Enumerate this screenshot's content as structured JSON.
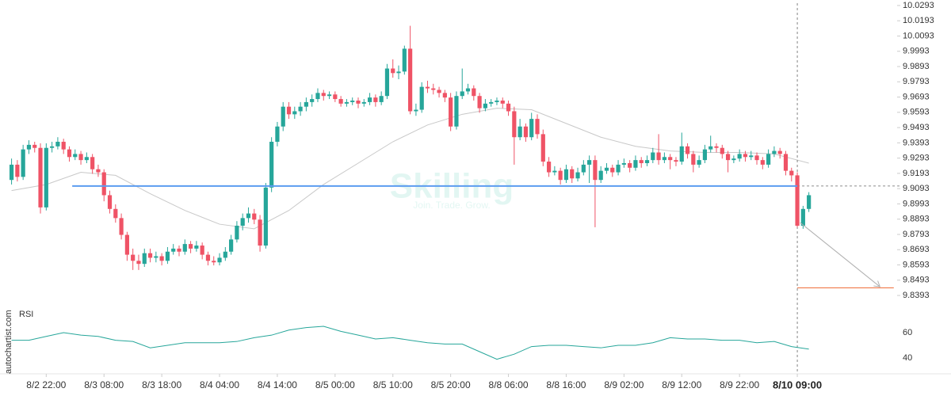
{
  "chart_data": {
    "type": "candlestick",
    "up_color": "#26a69a",
    "down_color": "#ef5366",
    "ylim": [
      9.8331,
      10.0329
    ],
    "yticks": [
      10.0293,
      10.0193,
      10.0093,
      9.9993,
      9.9893,
      9.9793,
      9.9693,
      9.9593,
      9.9493,
      9.9393,
      9.9293,
      9.9193,
      9.9093,
      9.8993,
      9.8893,
      9.8793,
      9.8693,
      9.8593,
      9.8493,
      9.8393
    ],
    "xlim": [
      -2,
      153
    ],
    "xticks": [
      {
        "value": 6,
        "label": "8/2 22:00"
      },
      {
        "value": 16,
        "label": "8/3 08:00"
      },
      {
        "value": 26,
        "label": "8/3 18:00"
      },
      {
        "value": 36,
        "label": "8/4 04:00"
      },
      {
        "value": 46,
        "label": "8/4 14:00"
      },
      {
        "value": 56,
        "label": "8/5 00:00"
      },
      {
        "value": 66,
        "label": "8/5 10:00"
      },
      {
        "value": 76,
        "label": "8/5 20:00"
      },
      {
        "value": 86,
        "label": "8/8 06:00"
      },
      {
        "value": 96,
        "label": "8/8 16:00"
      },
      {
        "value": 106,
        "label": "8/9 02:00"
      },
      {
        "value": 116,
        "label": "8/9 12:00"
      },
      {
        "value": 126,
        "label": "8/9 22:00"
      },
      {
        "value": 136,
        "label": "8/10 09:00"
      }
    ],
    "candles": [
      [
        9.915,
        9.929,
        9.912,
        9.925
      ],
      [
        9.925,
        9.928,
        9.914,
        9.917
      ],
      [
        9.917,
        9.938,
        9.915,
        9.935
      ],
      [
        9.935,
        9.941,
        9.932,
        9.938
      ],
      [
        9.938,
        9.94,
        9.933,
        9.936
      ],
      [
        9.936,
        9.939,
        9.893,
        9.897
      ],
      [
        9.897,
        9.939,
        9.895,
        9.936
      ],
      [
        9.936,
        9.94,
        9.933,
        9.937
      ],
      [
        9.937,
        9.943,
        9.935,
        9.94
      ],
      [
        9.94,
        9.942,
        9.932,
        9.935
      ],
      [
        9.935,
        9.937,
        9.927,
        9.93
      ],
      [
        9.93,
        9.935,
        9.928,
        9.932
      ],
      [
        9.932,
        9.934,
        9.925,
        9.928
      ],
      [
        9.928,
        9.933,
        9.926,
        9.93
      ],
      [
        9.93,
        9.932,
        9.919,
        9.922
      ],
      [
        9.922,
        9.925,
        9.917,
        9.92
      ],
      [
        9.92,
        9.922,
        9.901,
        9.905
      ],
      [
        9.905,
        9.908,
        9.893,
        9.896
      ],
      [
        9.896,
        9.899,
        9.887,
        9.89
      ],
      [
        9.89,
        9.893,
        9.876,
        9.879
      ],
      [
        9.879,
        9.881,
        9.862,
        9.866
      ],
      [
        9.866,
        9.87,
        9.856,
        9.862
      ],
      [
        9.862,
        9.866,
        9.856,
        9.86
      ],
      [
        9.86,
        9.87,
        9.858,
        9.867
      ],
      [
        9.867,
        9.87,
        9.861,
        9.864
      ],
      [
        9.864,
        9.868,
        9.861,
        9.865
      ],
      [
        9.865,
        9.867,
        9.859,
        9.862
      ],
      [
        9.862,
        9.871,
        9.86,
        9.868
      ],
      [
        9.868,
        9.873,
        9.866,
        9.87
      ],
      [
        9.87,
        9.872,
        9.865,
        9.868
      ],
      [
        9.868,
        9.876,
        9.866,
        9.873
      ],
      [
        9.873,
        9.875,
        9.867,
        9.87
      ],
      [
        9.87,
        9.875,
        9.868,
        9.872
      ],
      [
        9.872,
        9.874,
        9.863,
        9.866
      ],
      [
        9.866,
        9.868,
        9.859,
        9.862
      ],
      [
        9.862,
        9.865,
        9.859,
        9.861
      ],
      [
        9.861,
        9.867,
        9.859,
        9.864
      ],
      [
        9.864,
        9.871,
        9.862,
        9.868
      ],
      [
        9.868,
        9.879,
        9.866,
        9.876
      ],
      [
        9.876,
        9.888,
        9.874,
        9.885
      ],
      [
        9.885,
        9.893,
        9.882,
        9.89
      ],
      [
        9.89,
        9.897,
        9.887,
        9.893
      ],
      [
        9.893,
        9.896,
        9.886,
        9.889
      ],
      [
        9.889,
        9.892,
        9.868,
        9.872
      ],
      [
        9.872,
        9.913,
        9.87,
        9.91
      ],
      [
        9.91,
        9.943,
        9.907,
        9.94
      ],
      [
        9.94,
        9.953,
        9.937,
        9.95
      ],
      [
        9.95,
        9.966,
        9.947,
        9.963
      ],
      [
        9.963,
        9.966,
        9.955,
        9.958
      ],
      [
        9.958,
        9.963,
        9.955,
        9.96
      ],
      [
        9.96,
        9.966,
        9.957,
        9.963
      ],
      [
        9.963,
        9.969,
        9.96,
        9.966
      ],
      [
        9.966,
        9.971,
        9.963,
        9.968
      ],
      [
        9.968,
        9.975,
        9.966,
        9.972
      ],
      [
        9.972,
        9.974,
        9.967,
        9.97
      ],
      [
        9.97,
        9.973,
        9.968,
        9.971
      ],
      [
        9.971,
        9.973,
        9.966,
        9.968
      ],
      [
        9.968,
        9.97,
        9.963,
        9.965
      ],
      [
        9.965,
        9.968,
        9.963,
        9.966
      ],
      [
        9.966,
        9.969,
        9.964,
        9.967
      ],
      [
        9.967,
        9.969,
        9.962,
        9.965
      ],
      [
        9.965,
        9.968,
        9.963,
        9.966
      ],
      [
        9.966,
        9.972,
        9.964,
        9.969
      ],
      [
        9.969,
        9.971,
        9.963,
        9.966
      ],
      [
        9.966,
        9.973,
        9.964,
        9.97
      ],
      [
        9.97,
        9.991,
        9.968,
        9.988
      ],
      [
        9.988,
        9.994,
        9.982,
        9.985
      ],
      [
        9.985,
        9.99,
        9.981,
        9.986
      ],
      [
        9.986,
        10.003,
        9.984,
        10.001
      ],
      [
        10.001,
        10.016,
        9.958,
        9.96
      ],
      [
        9.96,
        9.965,
        9.957,
        9.961
      ],
      [
        9.961,
        9.979,
        9.959,
        9.976
      ],
      [
        9.976,
        9.98,
        9.972,
        9.975
      ],
      [
        9.975,
        9.978,
        9.971,
        9.974
      ],
      [
        9.974,
        9.976,
        9.969,
        9.972
      ],
      [
        9.972,
        9.974,
        9.966,
        9.969
      ],
      [
        9.969,
        9.972,
        9.947,
        9.95
      ],
      [
        9.95,
        9.973,
        9.948,
        9.97
      ],
      [
        9.97,
        9.988,
        9.968,
        9.973
      ],
      [
        9.973,
        9.978,
        9.971,
        9.975
      ],
      [
        9.975,
        9.977,
        9.967,
        9.97
      ],
      [
        9.97,
        9.972,
        9.959,
        9.962
      ],
      [
        9.962,
        9.968,
        9.96,
        9.965
      ],
      [
        9.965,
        9.968,
        9.963,
        9.966
      ],
      [
        9.966,
        9.969,
        9.964,
        9.967
      ],
      [
        9.967,
        9.969,
        9.962,
        9.965
      ],
      [
        9.965,
        9.967,
        9.957,
        9.96
      ],
      [
        9.96,
        9.963,
        9.925,
        9.943
      ],
      [
        9.943,
        9.955,
        9.941,
        9.95
      ],
      [
        9.95,
        9.952,
        9.94,
        9.943
      ],
      [
        9.943,
        9.959,
        9.941,
        9.955
      ],
      [
        9.955,
        9.958,
        9.942,
        9.945
      ],
      [
        9.945,
        9.948,
        9.924,
        9.927
      ],
      [
        9.927,
        9.93,
        9.917,
        9.92
      ],
      [
        9.92,
        9.924,
        9.918,
        9.921
      ],
      [
        9.921,
        9.923,
        9.912,
        9.915
      ],
      [
        9.915,
        9.925,
        9.913,
        9.922
      ],
      [
        9.922,
        9.924,
        9.913,
        9.916
      ],
      [
        9.916,
        9.923,
        9.914,
        9.92
      ],
      [
        9.92,
        9.928,
        9.918,
        9.925
      ],
      [
        9.925,
        9.931,
        9.913,
        9.928
      ],
      [
        9.928,
        9.931,
        9.884,
        9.915
      ],
      [
        9.915,
        9.924,
        9.913,
        9.921
      ],
      [
        9.921,
        9.926,
        9.919,
        9.923
      ],
      [
        9.923,
        9.925,
        9.917,
        9.92
      ],
      [
        9.92,
        9.928,
        9.918,
        9.925
      ],
      [
        9.925,
        9.929,
        9.923,
        9.926
      ],
      [
        9.926,
        9.928,
        9.92,
        9.923
      ],
      [
        9.923,
        9.931,
        9.921,
        9.928
      ],
      [
        9.928,
        9.93,
        9.923,
        9.926
      ],
      [
        9.926,
        9.931,
        9.924,
        9.928
      ],
      [
        9.928,
        9.936,
        9.926,
        9.933
      ],
      [
        9.933,
        9.945,
        9.925,
        9.928
      ],
      [
        9.928,
        9.933,
        9.926,
        9.93
      ],
      [
        9.93,
        9.932,
        9.922,
        9.928
      ],
      [
        9.928,
        9.93,
        9.924,
        9.927
      ],
      [
        9.927,
        9.946,
        9.925,
        9.937
      ],
      [
        9.937,
        9.939,
        9.929,
        9.932
      ],
      [
        9.932,
        9.934,
        9.92,
        9.925
      ],
      [
        9.925,
        9.931,
        9.923,
        9.928
      ],
      [
        9.928,
        9.938,
        9.926,
        9.935
      ],
      [
        9.935,
        9.944,
        9.933,
        9.937
      ],
      [
        9.937,
        9.939,
        9.933,
        9.936
      ],
      [
        9.936,
        9.938,
        9.929,
        9.932
      ],
      [
        9.932,
        9.934,
        9.92,
        9.928
      ],
      [
        9.928,
        9.931,
        9.926,
        9.929
      ],
      [
        9.929,
        9.935,
        9.927,
        9.932
      ],
      [
        9.932,
        9.934,
        9.927,
        9.93
      ],
      [
        9.93,
        9.934,
        9.928,
        9.931
      ],
      [
        9.931,
        9.933,
        9.925,
        9.928
      ],
      [
        9.928,
        9.93,
        9.922,
        9.925
      ],
      [
        9.925,
        9.935,
        9.923,
        9.932
      ],
      [
        9.932,
        9.937,
        9.93,
        9.934
      ],
      [
        9.934,
        9.936,
        9.929,
        9.932
      ],
      [
        9.932,
        9.934,
        9.918,
        9.921
      ],
      [
        9.921,
        9.923,
        9.914,
        9.918
      ],
      [
        9.918,
        9.92,
        9.884,
        9.885
      ],
      [
        9.885,
        9.898,
        9.883,
        9.896
      ],
      [
        9.896,
        9.907,
        9.894,
        9.905
      ]
    ],
    "moving_average": {
      "color": "#c8c8c8",
      "x": [
        0,
        6,
        12,
        18,
        24,
        30,
        36,
        42,
        48,
        54,
        60,
        66,
        72,
        78,
        84,
        90,
        96,
        102,
        108,
        114,
        120,
        126,
        132,
        138
      ],
      "values": [
        9.908,
        9.912,
        9.92,
        9.918,
        9.906,
        9.895,
        9.886,
        9.883,
        9.895,
        9.912,
        9.926,
        9.94,
        9.951,
        9.958,
        9.962,
        9.961,
        9.952,
        9.943,
        9.937,
        9.934,
        9.933,
        9.933,
        9.932,
        9.926
      ]
    },
    "support": {
      "color": "#5b9cf0",
      "x": [
        10.5,
        136
      ],
      "values": [
        9.911,
        9.911
      ]
    },
    "target": {
      "color": "#f07848",
      "x": [
        136,
        152.7
      ],
      "values": [
        9.8443,
        9.8443
      ]
    },
    "forecast": {
      "color": "#b0b0b0",
      "x": [
        136.5,
        150.3
      ],
      "values": [
        9.887,
        9.845
      ]
    },
    "crosshair": {
      "x": 136,
      "y": 9.911
    },
    "rsi": {
      "label": "RSI",
      "color": "#26a69a",
      "ylim": [
        28.75,
        75.6
      ],
      "yticks": [
        40,
        60
      ],
      "x": [
        0,
        3,
        6,
        9,
        12,
        15,
        18,
        21,
        24,
        27,
        30,
        33,
        36,
        39,
        42,
        45,
        48,
        51,
        54,
        57,
        60,
        63,
        66,
        69,
        72,
        75,
        78,
        81,
        84,
        87,
        90,
        93,
        96,
        99,
        102,
        105,
        108,
        111,
        114,
        117,
        120,
        123,
        126,
        129,
        132,
        135,
        138
      ],
      "values": [
        54,
        54,
        57,
        60,
        58,
        57,
        54,
        53,
        48,
        50,
        52,
        52,
        52,
        53,
        56,
        58,
        62,
        64,
        65,
        61,
        58,
        55,
        56,
        54,
        52,
        51,
        51,
        45,
        39,
        43,
        49,
        50,
        50,
        49,
        48,
        50,
        50,
        52,
        56,
        55,
        55,
        54,
        54,
        52,
        53,
        49,
        47
      ]
    },
    "source": "autochartist.com",
    "watermark": {
      "brand": "Skilling",
      "slogan": "Join. Trade. Grow."
    }
  }
}
